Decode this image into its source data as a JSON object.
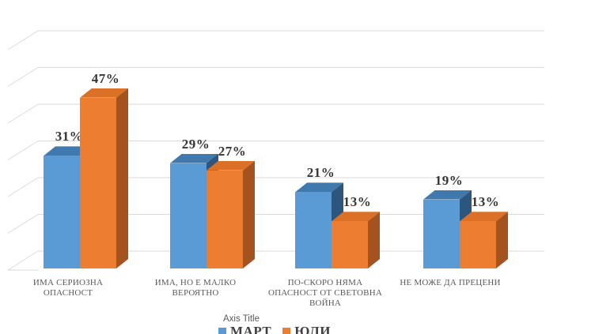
{
  "chart_data": {
    "type": "bar",
    "variant": "3d-clustered-column",
    "title": "",
    "axis_title": "Axis Title",
    "categories": [
      {
        "label": "ИМА СЕРИОЗНА ОПАСНОСТ",
        "lines": [
          "ИМА СЕРИОЗНА",
          "ОПАСНОСТ"
        ]
      },
      {
        "label": "ИМА, НО Е МАЛКО ВЕРОЯТНО",
        "lines": [
          "ИМА, НО Е МАЛКО",
          "ВЕРОЯТНО"
        ]
      },
      {
        "label": "ПО-СКОРО НЯМА ОПАСНОСТ ОТ СВЕТОВНА ВОЙНА",
        "lines": [
          "ПО-СКОРО НЯМА",
          "ОПАСНОСТ ОТ СВЕТОВНА",
          "ВОЙНА"
        ]
      },
      {
        "label": "НЕ МОЖЕ ДА ПРЕЦЕНИ",
        "lines": [
          "НЕ МОЖЕ ДА ПРЕЦЕНИ"
        ]
      }
    ],
    "series": [
      {
        "name": "МАРТ",
        "values": [
          31,
          29,
          21,
          19
        ],
        "color": "#5B9BD5",
        "top_color": "#3F79AE",
        "side_color": "#2C567E"
      },
      {
        "name": "ЮЛИ",
        "values": [
          47,
          27,
          13,
          13
        ],
        "color": "#ED7D31",
        "top_color": "#DB7127",
        "side_color": "#A5531E"
      }
    ],
    "data_labels": [
      "31%",
      "47%",
      "29%",
      "27%",
      "21%",
      "13%",
      "19%",
      "13%"
    ],
    "value_suffix": "%",
    "ylim": [
      0,
      60
    ],
    "gridline_step": 10,
    "grid": true,
    "gridline_color": "#DADADA",
    "category_label_color": "#595959",
    "value_label_color": "#363636",
    "legend_position": "bottom"
  }
}
